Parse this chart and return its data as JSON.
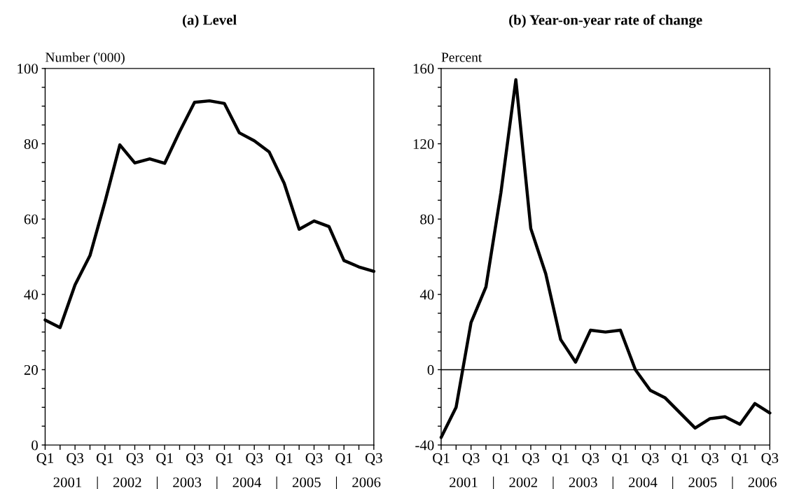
{
  "chart_data": [
    {
      "type": "line",
      "title": "(a) Level",
      "ylabel": "Number ('000)",
      "categories": [
        "Q1",
        null,
        "Q3",
        null,
        "Q1",
        null,
        "Q3",
        null,
        "Q1",
        null,
        "Q3",
        null,
        "Q1",
        null,
        "Q3",
        null,
        "Q1",
        null,
        "Q3",
        null,
        "Q1",
        null,
        "Q3"
      ],
      "series": [
        {
          "color": "#000000",
          "values": [
            33.2,
            31.2,
            42.5,
            50.3,
            64.5,
            79.7,
            74.9,
            76.0,
            74.8,
            83.2,
            91.0,
            91.4,
            90.7,
            82.9,
            80.8,
            77.8,
            69.5,
            57.3,
            59.5,
            58.0,
            49.0,
            47.3,
            46.1
          ]
        }
      ],
      "ylim": [
        0,
        100
      ],
      "yticks": [
        0,
        {
          "value": 5,
          "label": null
        },
        {
          "value": 10,
          "label": null
        },
        {
          "value": 15,
          "label": null
        },
        20,
        {
          "value": 25,
          "label": null
        },
        {
          "value": 30,
          "label": null
        },
        {
          "value": 35,
          "label": null
        },
        40,
        {
          "value": 45,
          "label": null
        },
        {
          "value": 50,
          "label": null
        },
        {
          "value": 55,
          "label": null
        },
        60,
        {
          "value": 65,
          "label": null
        },
        {
          "value": 70,
          "label": null
        },
        {
          "value": 75,
          "label": null
        },
        80,
        {
          "value": 85,
          "label": null
        },
        {
          "value": 90,
          "label": null
        },
        {
          "value": 95,
          "label": null
        },
        100
      ],
      "annotations": [
        "2001",
        "2002",
        "2003",
        "2004",
        "2005",
        "2006"
      ],
      "grid": false,
      "legend": false,
      "line_style": "solid",
      "marker": "none"
    },
    {
      "type": "line",
      "title": "(b) Year-on-year rate of change",
      "ylabel": "Percent",
      "categories": [
        "Q1",
        null,
        "Q3",
        null,
        "Q1",
        null,
        "Q3",
        null,
        "Q1",
        null,
        "Q3",
        null,
        "Q1",
        null,
        "Q3",
        null,
        "Q1",
        null,
        "Q3",
        null,
        "Q1",
        null,
        "Q3"
      ],
      "series": [
        {
          "color": "#000000",
          "values": [
            -36,
            -20,
            25,
            44,
            94,
            154,
            75,
            51,
            16,
            4,
            21,
            20,
            21,
            0,
            -11,
            -15,
            -23,
            -31,
            -26,
            -25,
            -29,
            -18,
            -23
          ]
        }
      ],
      "ylim": [
        -40,
        160
      ],
      "yticks": [
        -40,
        {
          "value": -30,
          "label": null
        },
        {
          "value": -20,
          "label": null
        },
        {
          "value": -10,
          "label": null
        },
        0,
        {
          "value": 10,
          "label": null
        },
        {
          "value": 20,
          "label": null
        },
        {
          "value": 30,
          "label": null
        },
        40,
        {
          "value": 50,
          "label": null
        },
        {
          "value": 60,
          "label": null
        },
        {
          "value": 70,
          "label": null
        },
        80,
        {
          "value": 90,
          "label": null
        },
        {
          "value": 100,
          "label": null
        },
        {
          "value": 110,
          "label": null
        },
        120,
        {
          "value": 130,
          "label": null
        },
        {
          "value": 140,
          "label": null
        },
        {
          "value": 150,
          "label": null
        },
        160
      ],
      "ref_lines": [
        {
          "axis": "y",
          "value": 0,
          "color": "#000000",
          "line_style": "solid"
        }
      ],
      "annotations": [
        "2001",
        "2002",
        "2003",
        "2004",
        "2005",
        "2006"
      ],
      "grid": false,
      "legend": false,
      "line_style": "solid",
      "marker": "none"
    }
  ]
}
